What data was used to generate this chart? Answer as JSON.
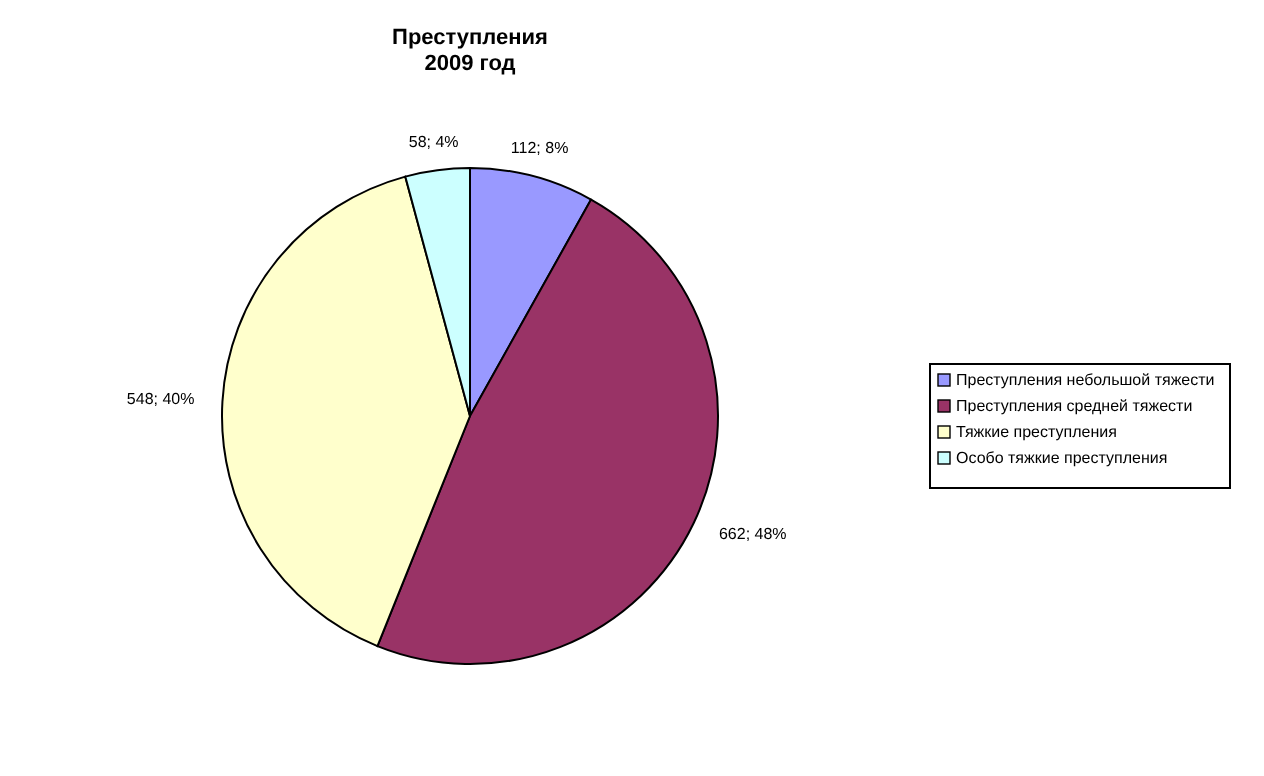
{
  "chart_data": {
    "type": "pie",
    "title": "Преступления\n2009 год",
    "categories": [
      "Преступления небольшой тяжести",
      "Преступления средней тяжести",
      "Тяжкие преступления",
      "Особо тяжкие преступления"
    ],
    "values": [
      112,
      662,
      548,
      58
    ],
    "colors": [
      "#9999ff",
      "#993366",
      "#ffffcc",
      "#ccffff"
    ],
    "value_labels": [
      "112; 8%",
      "662; 48%",
      "548; 40%",
      "58; 4%"
    ],
    "legend": "right"
  }
}
